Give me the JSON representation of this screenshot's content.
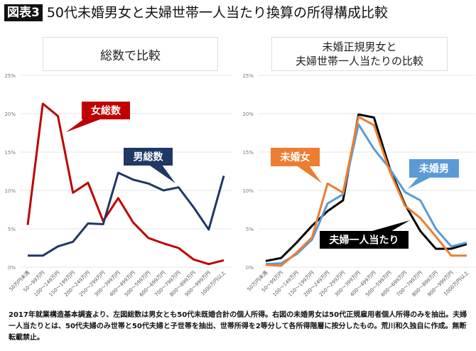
{
  "header": {
    "badge": "図表3",
    "title": "50代未婚男女と夫婦世帯一人当たり換算の所得構成比較"
  },
  "chart_data": [
    {
      "type": "line",
      "title": "総数で比較",
      "ylim": [
        0,
        25
      ],
      "yticks": [
        "0%",
        "5%",
        "10%",
        "15%",
        "20%",
        "25%"
      ],
      "grid": true,
      "categories": [
        "50万円未満",
        "50～99万円",
        "100～149万円",
        "150～199万円",
        "200～249万円",
        "250～299万円",
        "300～399万円",
        "400～499万円",
        "500～599万円",
        "600～699万円",
        "700～799万円",
        "800～899万円",
        "900～999万円",
        "1000万円以上"
      ],
      "series": [
        {
          "name": "女総数",
          "color": "#c00000",
          "values": [
            5.5,
            21.3,
            19.7,
            9.7,
            11.0,
            6.0,
            9.0,
            5.8,
            3.8,
            3.1,
            2.5,
            1.0,
            0.4,
            0.9
          ]
        },
        {
          "name": "男総数",
          "color": "#1f3864",
          "values": [
            1.5,
            1.5,
            2.7,
            3.3,
            5.7,
            5.6,
            12.3,
            11.4,
            10.9,
            10.0,
            10.4,
            7.8,
            4.9,
            11.9
          ]
        }
      ]
    },
    {
      "type": "line",
      "title": "未婚正規男女と\n夫婦世帯一人当たりの比較",
      "title_lines": [
        "未婚正規男女と",
        "夫婦世帯一人当たりの比較"
      ],
      "ylim": [
        0,
        25
      ],
      "yticks": [
        "0%",
        "5%",
        "10%",
        "15%",
        "20%",
        "25%"
      ],
      "grid": true,
      "categories": [
        "50万円未満",
        "50～99万円",
        "100～149万円",
        "150～199万円",
        "200～249万円",
        "250～299万円",
        "300～399万円",
        "400～499万円",
        "500～599万円",
        "600～699万円",
        "700～799万円",
        "800～899万円",
        "900～999万円",
        "1000万円以上"
      ],
      "series": [
        {
          "name": "夫婦一人当たり",
          "color": "#000000",
          "values": [
            0.8,
            1.2,
            3.2,
            5.4,
            7.3,
            8.7,
            19.9,
            19.5,
            13.0,
            8.2,
            4.7,
            2.4,
            2.4,
            3.0
          ]
        },
        {
          "name": "未婚男",
          "color": "#5b9bd5",
          "values": [
            0.4,
            0.5,
            1.7,
            3.6,
            8.3,
            9.5,
            18.6,
            15.4,
            12.9,
            9.8,
            8.7,
            5.0,
            2.7,
            3.2
          ]
        },
        {
          "name": "未婚女",
          "color": "#ed7d31",
          "values": [
            0.3,
            0.2,
            1.9,
            3.9,
            10.9,
            9.7,
            19.6,
            18.5,
            12.6,
            8.0,
            6.4,
            4.0,
            1.5,
            1.5
          ]
        }
      ]
    }
  ],
  "footer": "2017年就業構造基本調査より、左図総数は男女とも50代未既婚合計の個人所得。右図の未婚男女は50代正規雇用者個人所得のみを抽出。夫婦一人当たりとは、50代夫婦のみ世帯と50代夫婦と子世帯を抽出、世帯所得を2等分して各所得階層に按分したもの。荒川和久独自に作成。無断転載禁止。"
}
